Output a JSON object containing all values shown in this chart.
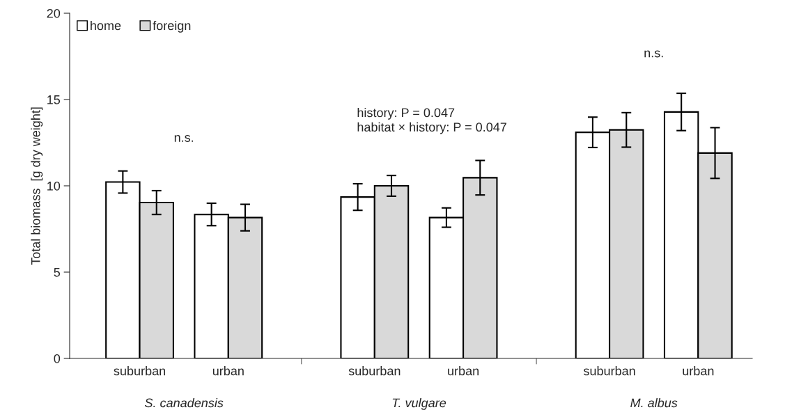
{
  "chart_data": {
    "type": "bar",
    "ylabel": "Total biomass  [g dry weight]",
    "categories": [
      "suburban",
      "urban",
      "suburban",
      "urban",
      "suburban",
      "urban"
    ],
    "series": [
      {
        "name": "home",
        "color": "#ffffff",
        "values": [
          10.22,
          8.34,
          9.35,
          8.16,
          13.1,
          14.28
        ],
        "errors": [
          0.64,
          0.65,
          0.77,
          0.56,
          0.88,
          1.08
        ]
      },
      {
        "name": "foreign",
        "color": "#d9d9d9",
        "values": [
          9.03,
          8.16,
          10.0,
          10.47,
          13.24,
          11.9
        ],
        "errors": [
          0.69,
          0.77,
          0.6,
          1.0,
          1.0,
          1.47
        ]
      }
    ],
    "ylim": [
      0,
      20
    ],
    "yticks": [
      0,
      5,
      10,
      15,
      20
    ],
    "grid": false,
    "legend": "top left",
    "annotations": [
      "S. canadensis",
      "T. vulgare",
      "M. albus",
      "n.s.",
      "history: P = 0.047\nhabitat × history: P = 0.047",
      "n.s."
    ]
  }
}
